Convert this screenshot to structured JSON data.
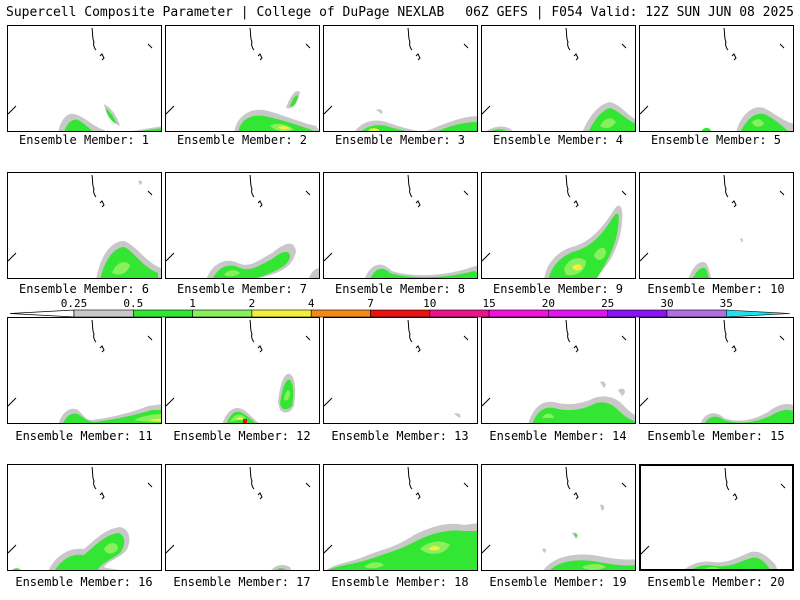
{
  "header": {
    "title_left": "Supercell Composite Parameter | College of DuPage NEXLAB",
    "title_right": "06Z GEFS | F054 Valid: 12Z SUN JUN 08 2025"
  },
  "colorbar": {
    "ticks": [
      "0.25",
      "0.5",
      "1",
      "2",
      "4",
      "7",
      "10",
      "15",
      "20",
      "25",
      "30",
      "35"
    ],
    "colors": [
      "#c8c8c8",
      "#33e633",
      "#88f05c",
      "#f0f040",
      "#f08a1a",
      "#e81414",
      "#e8148a",
      "#f014d8",
      "#e014f0",
      "#8a14f0",
      "#b070e0",
      "#22e0f0"
    ]
  },
  "panels": [
    {
      "label": "Ensemble Member: 1"
    },
    {
      "label": "Ensemble Member: 2"
    },
    {
      "label": "Ensemble Member: 3"
    },
    {
      "label": "Ensemble Member: 4"
    },
    {
      "label": "Ensemble Member: 5"
    },
    {
      "label": "Ensemble Member: 6"
    },
    {
      "label": "Ensemble Member: 7"
    },
    {
      "label": "Ensemble Member: 8"
    },
    {
      "label": "Ensemble Member: 9"
    },
    {
      "label": "Ensemble Member: 10"
    },
    {
      "label": "Ensemble Member: 11"
    },
    {
      "label": "Ensemble Member: 12"
    },
    {
      "label": "Ensemble Member: 13"
    },
    {
      "label": "Ensemble Member: 14"
    },
    {
      "label": "Ensemble Member: 15"
    },
    {
      "label": "Ensemble Member: 16"
    },
    {
      "label": "Ensemble Member: 17"
    },
    {
      "label": "Ensemble Member: 18"
    },
    {
      "label": "Ensemble Member: 19"
    },
    {
      "label": "Ensemble Member: 20"
    }
  ]
}
